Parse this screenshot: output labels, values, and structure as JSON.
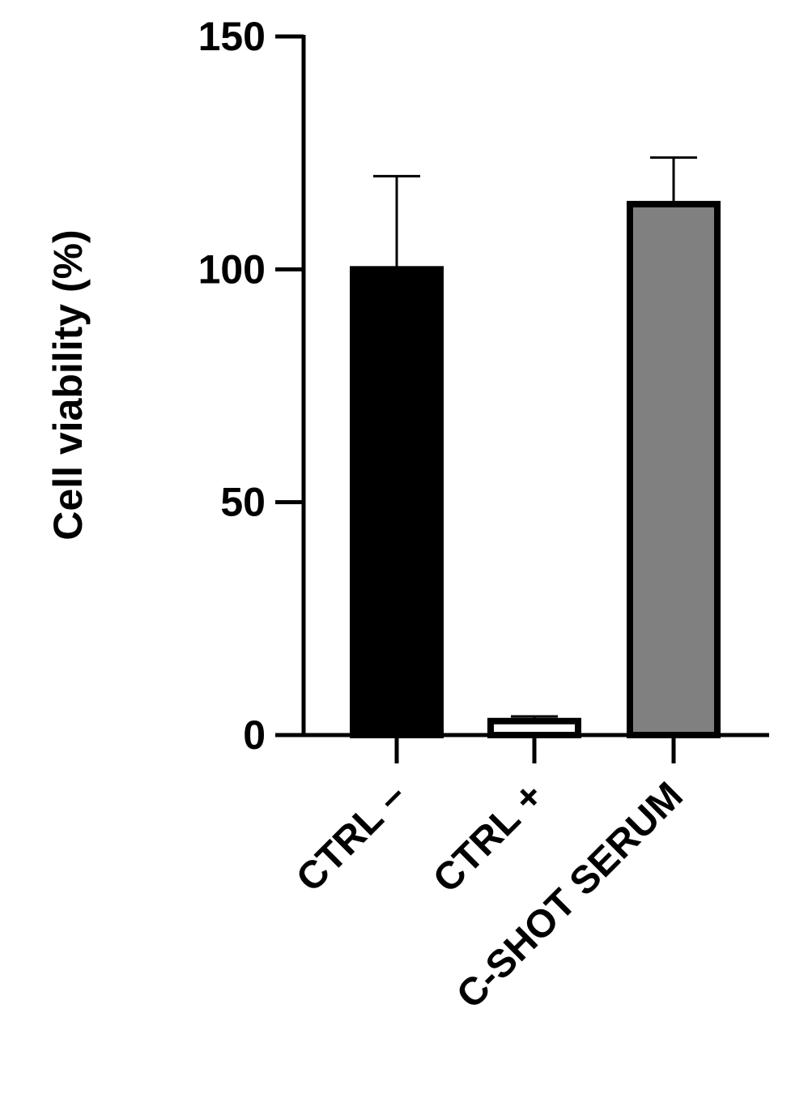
{
  "chart_data": {
    "type": "bar",
    "y_label": "Cell viability (%)",
    "categories": [
      "CTRL –",
      "CTRL +",
      "C-SHOT SERUM"
    ],
    "values": [
      100,
      3,
      114
    ],
    "errors": [
      20,
      1,
      10
    ],
    "colors": [
      "#000000",
      "#ffffff",
      "#808080"
    ],
    "ylim": [
      0,
      150
    ],
    "yticks": [
      0,
      50,
      100,
      150
    ]
  }
}
